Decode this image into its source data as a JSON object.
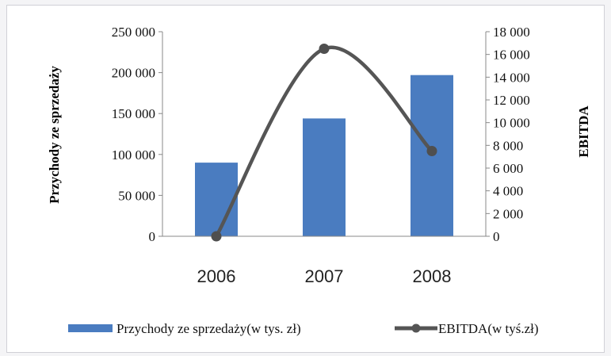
{
  "chart_data": {
    "type": "bar+line",
    "categories": [
      "2006",
      "2007",
      "2008"
    ],
    "series": [
      {
        "name": "Przychody ze sprzedaży(w tys. zł)",
        "type": "bar",
        "axis": "left",
        "values": [
          90000,
          144000,
          197000
        ],
        "color": "#4a7cc0"
      },
      {
        "name": "EBITDA(w tyś.zł)",
        "type": "line",
        "axis": "right",
        "smooth": true,
        "values": [
          0,
          16500,
          7500
        ],
        "color": "#555555"
      }
    ],
    "ylabel": "Przychody ze sprzedaży",
    "y2label": "EBITDA",
    "ylim": [
      0,
      250000
    ],
    "y2lim": [
      0,
      18000
    ],
    "yticks": [
      "0",
      "50 000",
      "100 000",
      "150 000",
      "200 000",
      "250 000"
    ],
    "y2ticks": [
      "0",
      "2 000",
      "4 000",
      "6 000",
      "8 000",
      "10 000",
      "12 000",
      "14 000",
      "16 000",
      "18 000"
    ],
    "grid": false,
    "legend_position": "bottom"
  }
}
